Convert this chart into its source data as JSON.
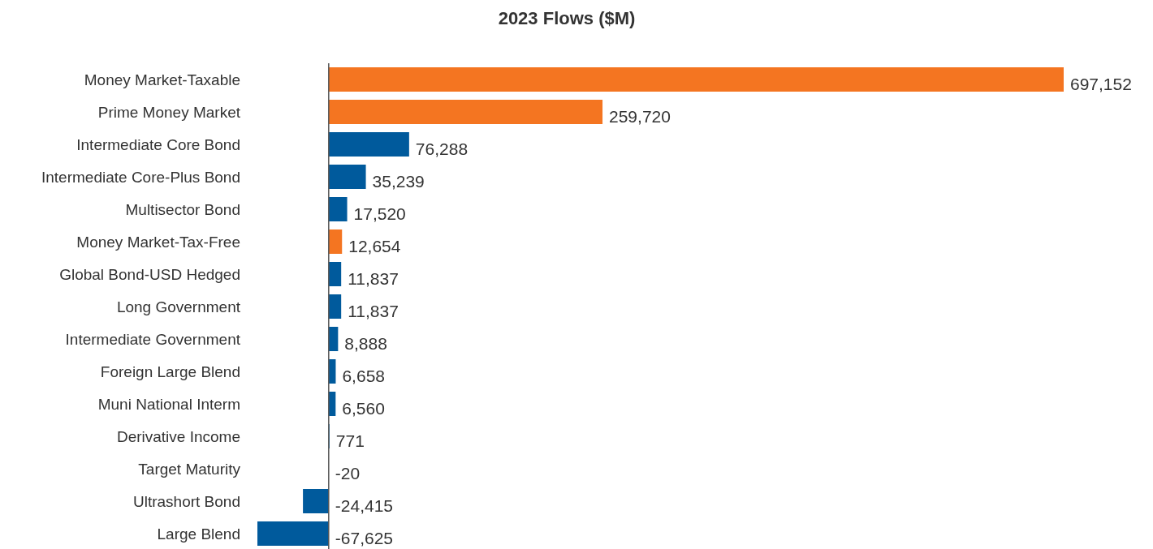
{
  "chart_data": {
    "type": "bar",
    "orientation": "horizontal",
    "title": "2023 Flows ($M)",
    "categories": [
      "Money Market-Taxable",
      "Prime Money Market",
      "Intermediate Core Bond",
      "Intermediate Core-Plus Bond",
      "Multisector Bond",
      "Money Market-Tax-Free",
      "Global Bond-USD Hedged",
      "Long Government",
      "Intermediate Government",
      "Foreign Large Blend",
      "Muni National Interm",
      "Derivative Income",
      "Target Maturity",
      "Ultrashort Bond",
      "Large Blend"
    ],
    "values": [
      697152,
      259720,
      76288,
      35239,
      17520,
      12654,
      11837,
      11837,
      8888,
      6658,
      6560,
      771,
      -20,
      -24415,
      -67625
    ],
    "colors": [
      "#f47521",
      "#f47521",
      "#005a9c",
      "#005a9c",
      "#005a9c",
      "#f47521",
      "#005a9c",
      "#005a9c",
      "#005a9c",
      "#005a9c",
      "#005a9c",
      "#005a9c",
      "#005a9c",
      "#005a9c",
      "#005a9c"
    ],
    "value_labels": [
      "697,152",
      "259,720",
      "76,288",
      "35,239",
      "17,520",
      "12,654",
      "11,837",
      "11,837",
      "8,888",
      "6,658",
      "6,560",
      "771",
      "-20",
      "-24,415",
      "-67,625"
    ]
  }
}
